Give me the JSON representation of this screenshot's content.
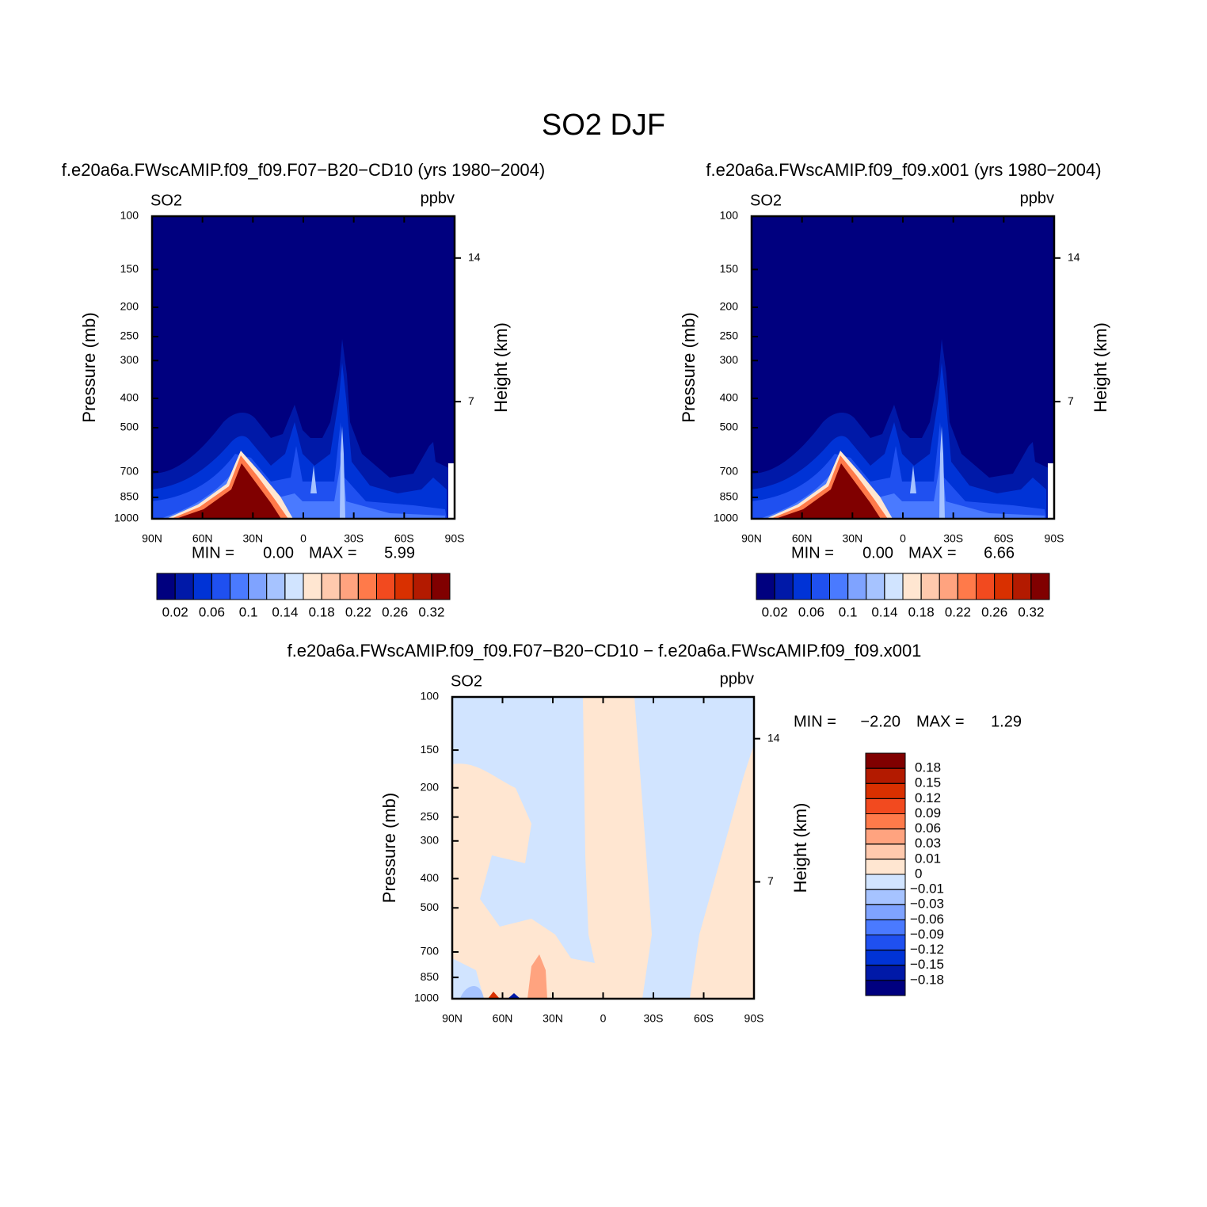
{
  "title": "SO2 DJF",
  "chart_data": [
    {
      "type": "contour",
      "title": "f.e20a6a.FWscAMIP.f09_f09.F07−B20−CD10 (yrs 1980−2004)",
      "left_label": "SO2",
      "right_label": "ppbv",
      "ylabel": "Pressure (mb)",
      "y2label": "Height (km)",
      "log_y": true,
      "ylim": [
        1000,
        100
      ],
      "yticks": [
        100,
        150,
        200,
        250,
        300,
        400,
        500,
        700,
        850,
        1000
      ],
      "y2ticks": [
        14,
        7
      ],
      "xlim": [
        90,
        -90
      ],
      "xticks": [
        {
          "value": 90,
          "label": "90N"
        },
        {
          "value": 60,
          "label": "60N"
        },
        {
          "value": 30,
          "label": "30N"
        },
        0,
        {
          "value": -30,
          "label": "30S"
        },
        {
          "value": -60,
          "label": "60S"
        },
        {
          "value": -90,
          "label": "90S"
        }
      ],
      "stats": {
        "min_text": "MIN =",
        "min": "0.00",
        "max_text": "MAX =",
        "max": "5.99"
      },
      "colorbar": {
        "orientation": "horizontal",
        "colors": [
          "#00007f",
          "#0019a8",
          "#0033d6",
          "#1f50f0",
          "#4a7aff",
          "#7fa3ff",
          "#a6c3ff",
          "#d1e4ff",
          "#ffe6d1",
          "#ffc9ad",
          "#ffa37f",
          "#ff7a4a",
          "#f24a1f",
          "#d93000",
          "#b31a00",
          "#800000"
        ],
        "levels": [
          0.02,
          null,
          0.06,
          null,
          0.1,
          null,
          0.14,
          null,
          0.18,
          null,
          0.22,
          null,
          0.26,
          null,
          0.32
        ]
      }
    },
    {
      "type": "contour",
      "title": "f.e20a6a.FWscAMIP.f09_f09.x001 (yrs 1980−2004)",
      "left_label": "SO2",
      "right_label": "ppbv",
      "ylabel": "Pressure (mb)",
      "y2label": "Height (km)",
      "log_y": true,
      "ylim": [
        1000,
        100
      ],
      "yticks": [
        100,
        150,
        200,
        250,
        300,
        400,
        500,
        700,
        850,
        1000
      ],
      "y2ticks": [
        14,
        7
      ],
      "xlim": [
        90,
        -90
      ],
      "xticks": [
        {
          "value": 90,
          "label": "90N"
        },
        {
          "value": 60,
          "label": "60N"
        },
        {
          "value": 30,
          "label": "30N"
        },
        0,
        {
          "value": -30,
          "label": "30S"
        },
        {
          "value": -60,
          "label": "60S"
        },
        {
          "value": -90,
          "label": "90S"
        }
      ],
      "stats": {
        "min_text": "MIN =",
        "min": "0.00",
        "max_text": "MAX =",
        "max": "6.66"
      },
      "colorbar": {
        "orientation": "horizontal",
        "colors": [
          "#00007f",
          "#0019a8",
          "#0033d6",
          "#1f50f0",
          "#4a7aff",
          "#7fa3ff",
          "#a6c3ff",
          "#d1e4ff",
          "#ffe6d1",
          "#ffc9ad",
          "#ffa37f",
          "#ff7a4a",
          "#f24a1f",
          "#d93000",
          "#b31a00",
          "#800000"
        ],
        "levels": [
          0.02,
          null,
          0.06,
          null,
          0.1,
          null,
          0.14,
          null,
          0.18,
          null,
          0.22,
          null,
          0.26,
          null,
          0.32
        ]
      }
    },
    {
      "type": "contour",
      "title": "f.e20a6a.FWscAMIP.f09_f09.F07−B20−CD10 − f.e20a6a.FWscAMIP.f09_f09.x001",
      "left_label": "SO2",
      "right_label": "ppbv",
      "ylabel": "Pressure (mb)",
      "y2label": "Height (km)",
      "log_y": true,
      "ylim": [
        1000,
        100
      ],
      "yticks": [
        100,
        150,
        200,
        250,
        300,
        400,
        500,
        700,
        850,
        1000
      ],
      "y2ticks": [
        14,
        7
      ],
      "xlim": [
        90,
        -90
      ],
      "xticks": [
        {
          "value": 90,
          "label": "90N"
        },
        {
          "value": 60,
          "label": "60N"
        },
        {
          "value": 30,
          "label": "30N"
        },
        0,
        {
          "value": -30,
          "label": "30S"
        },
        {
          "value": -60,
          "label": "60S"
        },
        {
          "value": -90,
          "label": "90S"
        }
      ],
      "stats": {
        "min_text": "MIN =",
        "min": "−2.20",
        "max_text": "MAX =",
        "max": "1.29"
      },
      "colorbar": {
        "orientation": "vertical",
        "colors": [
          "#00007f",
          "#0019a8",
          "#0033d6",
          "#1f50f0",
          "#4a7aff",
          "#7fa3ff",
          "#a6c3ff",
          "#d1e4ff",
          "#ffe6d1",
          "#ffc9ad",
          "#ffa37f",
          "#ff7a4a",
          "#f24a1f",
          "#d93000",
          "#b31a00",
          "#800000"
        ],
        "levels": [
          {
            "value": -0.18,
            "label": "−0.18"
          },
          {
            "value": -0.15,
            "label": "−0.15"
          },
          {
            "value": -0.12,
            "label": "−0.12"
          },
          {
            "value": -0.09,
            "label": "−0.09"
          },
          {
            "value": -0.06,
            "label": "−0.06"
          },
          {
            "value": -0.03,
            "label": "−0.03"
          },
          {
            "value": -0.01,
            "label": "−0.01"
          },
          0,
          0.01,
          0.03,
          0.06,
          0.09,
          0.12,
          0.15,
          0.18
        ]
      }
    }
  ]
}
